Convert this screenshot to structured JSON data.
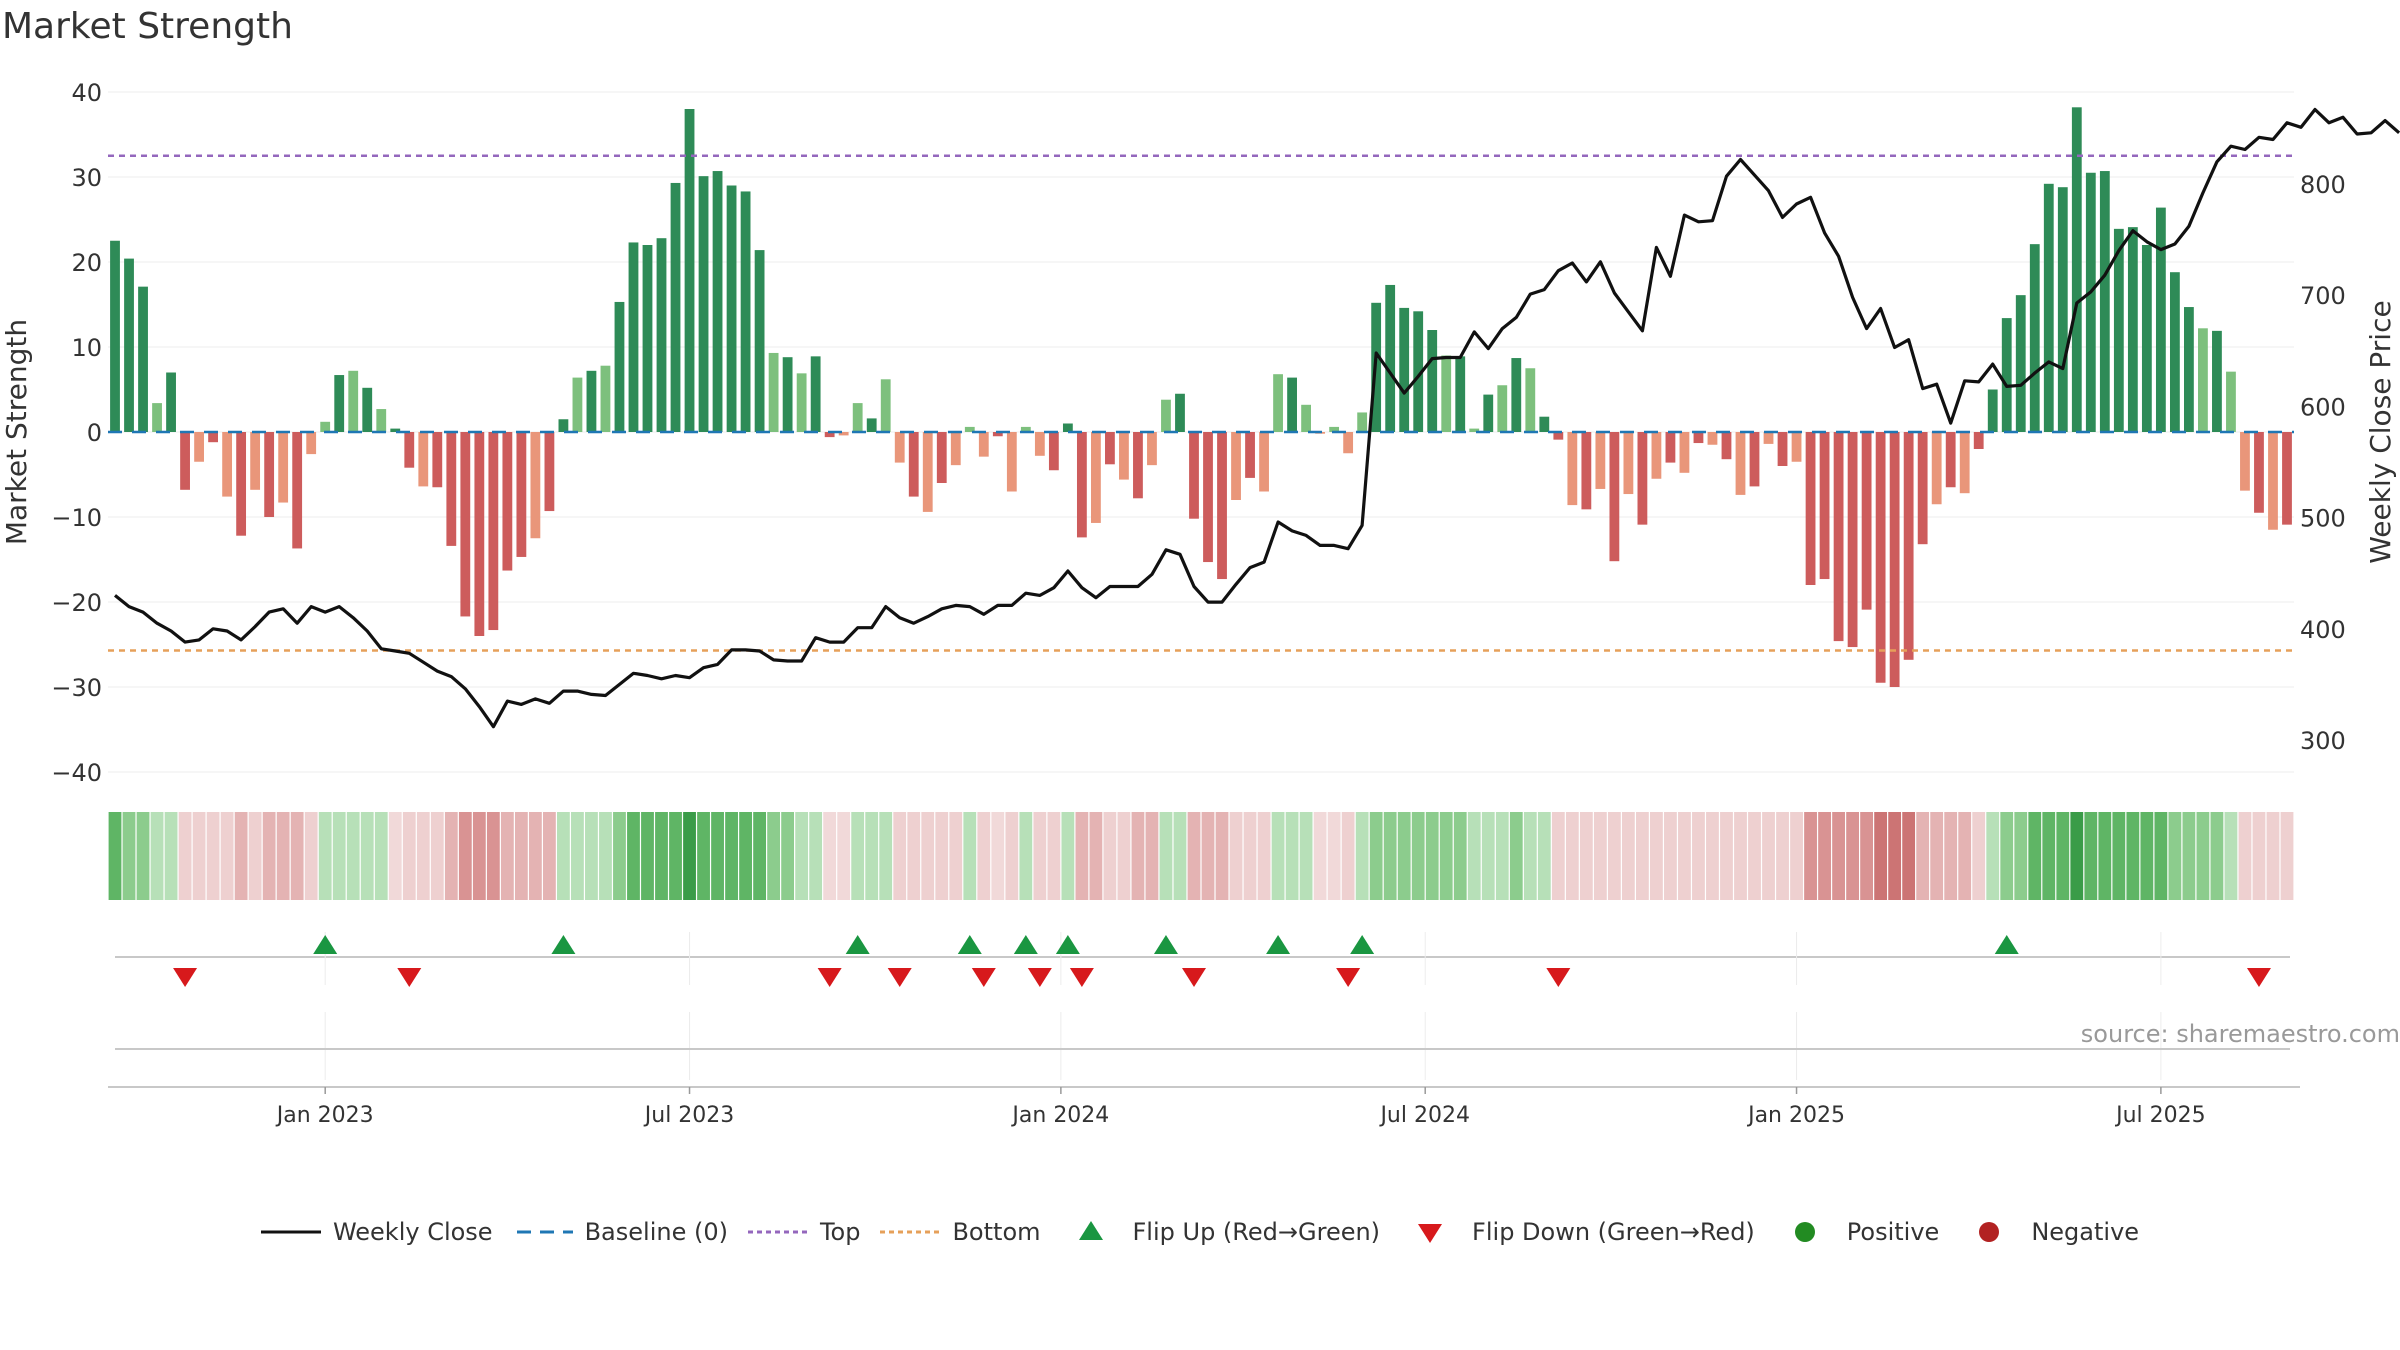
{
  "title": "Market Strength",
  "source": "source: sharemaestro.com",
  "colors": {
    "pos_strong": "#2e8b57",
    "pos_light": "#7dc07d",
    "neg_strong": "#cd5c5c",
    "neg_light": "#e9967a",
    "price_line": "#111111",
    "baseline": "#1f77b4",
    "top": "#9467bd",
    "bottom": "#e6a05a",
    "flip_up": "#1a9641",
    "flip_down": "#d7191c",
    "positive": "#228b22",
    "negative": "#b22222"
  },
  "legend": [
    {
      "label": "Weekly Close",
      "kind": "line-solid",
      "color": "#111111"
    },
    {
      "label": "Baseline (0)",
      "kind": "line-dash",
      "color": "#1f77b4"
    },
    {
      "label": "Top",
      "kind": "line-dot",
      "color": "#9467bd"
    },
    {
      "label": "Bottom",
      "kind": "line-dot",
      "color": "#e6a05a"
    },
    {
      "label": "Flip Up (Red→Green)",
      "kind": "tri-up",
      "color": "#1a9641"
    },
    {
      "label": "Flip Down (Green→Red)",
      "kind": "tri-down",
      "color": "#d7191c"
    },
    {
      "label": "Positive",
      "kind": "dot",
      "color": "#228b22"
    },
    {
      "label": "Negative",
      "kind": "dot",
      "color": "#b22222"
    }
  ],
  "chart_data": {
    "type": "bar",
    "ylabel": "Market Strength",
    "y2label": "Weekly Close Price",
    "ylim": [
      -40,
      40
    ],
    "y2lim": [
      260,
      880
    ],
    "yticks": [
      40,
      30,
      20,
      10,
      0,
      -10,
      -20,
      -30,
      -40
    ],
    "y2ticks": [
      800,
      700,
      600,
      500,
      400,
      300
    ],
    "xticks": [
      "Jan 2023",
      "Jul 2023",
      "Jan 2024",
      "Jul 2024",
      "Jan 2025",
      "Jul 2025"
    ],
    "xtick_index": [
      15,
      41,
      67.5,
      93.5,
      120,
      146
    ],
    "top_level": 32.5,
    "bottom_level": -25.7,
    "baseline": 0,
    "strength": [
      22.5,
      20.4,
      17.1,
      3.4,
      7,
      -6.8,
      -3.5,
      -1.2,
      -7.6,
      -12.2,
      -6.8,
      -10,
      -8.3,
      -13.7,
      -2.6,
      1.2,
      6.7,
      7.2,
      5.2,
      2.7,
      0.4,
      -4.2,
      -6.4,
      -6.5,
      -13.4,
      -21.7,
      -24,
      -23.3,
      -16.3,
      -14.7,
      -12.5,
      -9.3,
      1.5,
      6.4,
      7.2,
      7.8,
      15.3,
      22.3,
      22,
      22.8,
      29.3,
      38,
      30.1,
      30.7,
      29,
      28.3,
      21.4,
      9.3,
      8.8,
      6.9,
      8.9,
      -0.6,
      -0.4,
      3.4,
      1.6,
      6.2,
      -3.6,
      -7.6,
      -9.4,
      -6,
      -3.9,
      0.6,
      -2.9,
      -0.5,
      -7,
      0.6,
      -2.8,
      -4.5,
      1,
      -12.4,
      -10.7,
      -3.8,
      -5.6,
      -7.8,
      -3.9,
      3.8,
      4.5,
      -10.2,
      -15.3,
      -17.3,
      -8,
      -5.4,
      -7,
      6.8,
      6.4,
      3.2,
      -0.2,
      0.6,
      -2.5,
      2.3,
      15.2,
      17.3,
      14.6,
      14.2,
      12,
      9,
      8.9,
      0.4,
      4.4,
      5.5,
      8.7,
      7.5,
      1.8,
      -0.9,
      -8.6,
      -9.1,
      -6.7,
      -15.2,
      -7.3,
      -10.9,
      -5.5,
      -3.6,
      -4.8,
      -1.3,
      -1.5,
      -3.2,
      -7.4,
      -6.4,
      -1.4,
      -4,
      -3.5,
      -18,
      -17.3,
      -24.6,
      -25.3,
      -20.9,
      -29.5,
      -30,
      -26.8,
      -13.2,
      -8.5,
      -6.5,
      -7.2,
      -2,
      5,
      13.4,
      16.1,
      22.1,
      29.2,
      28.8,
      38.2,
      30.5,
      30.7,
      23.9,
      24.1,
      22,
      26.4,
      18.8,
      14.7,
      12.2,
      11.9,
      7.1,
      -6.9,
      -9.5,
      -11.5,
      -10.9
    ],
    "close": [
      430,
      420,
      415,
      405,
      398,
      388,
      390,
      400,
      398,
      390,
      402,
      415,
      418,
      405,
      420,
      415,
      420,
      410,
      398,
      382,
      380,
      378,
      370,
      362,
      357,
      346,
      330,
      312,
      335,
      332,
      337,
      333,
      344,
      344,
      341,
      340,
      350,
      360,
      358,
      355,
      358,
      356,
      365,
      368,
      381,
      381,
      380,
      372,
      371,
      371,
      392,
      388,
      388,
      401,
      401,
      420,
      410,
      405,
      411,
      418,
      421,
      420,
      413,
      421,
      421,
      432,
      430,
      437,
      452,
      437,
      428,
      438,
      438,
      438,
      449,
      471,
      467,
      438,
      424,
      424,
      440,
      455,
      460,
      496,
      488,
      484,
      475,
      475,
      472,
      493,
      648,
      630,
      612,
      627,
      643,
      644,
      644,
      667,
      652,
      670,
      680,
      701,
      705,
      722,
      729,
      712,
      730,
      702,
      685,
      668,
      743,
      717,
      772,
      766,
      767,
      807,
      822,
      808,
      794,
      770,
      782,
      788,
      756,
      735,
      698,
      670,
      688,
      653,
      660,
      616,
      620,
      585,
      623,
      622,
      638,
      618,
      619,
      630,
      640,
      634,
      693,
      703,
      718,
      740,
      758,
      748,
      741,
      746,
      762,
      792,
      820,
      834,
      831,
      842,
      840,
      855,
      851,
      867,
      855,
      860,
      845,
      846,
      857,
      846
    ],
    "flip_up": [
      15,
      32,
      53,
      61,
      65,
      68,
      75,
      83,
      89,
      135
    ],
    "flip_down": [
      5,
      21,
      51,
      56,
      62,
      66,
      69,
      77,
      88,
      103,
      153
    ],
    "heat_levels": [
      3,
      2,
      2,
      1,
      1,
      -1,
      -1,
      -1,
      -1,
      -2,
      -1,
      -2,
      -2,
      -2,
      -1,
      1,
      1,
      1,
      1,
      1,
      0,
      -1,
      -1,
      -1,
      -2,
      -3,
      -3,
      -3,
      -2,
      -2,
      -2,
      -2,
      1,
      1,
      1,
      1,
      2,
      3,
      3,
      3,
      3,
      4,
      3,
      3,
      3,
      3,
      3,
      2,
      2,
      1,
      1,
      0,
      0,
      1,
      1,
      1,
      -1,
      -1,
      -1,
      -1,
      -1,
      1,
      -1,
      0,
      -1,
      1,
      -1,
      -1,
      1,
      -2,
      -2,
      -1,
      -1,
      -2,
      -2,
      1,
      1,
      -2,
      -2,
      -2,
      -1,
      -1,
      -1,
      1,
      1,
      1,
      0,
      0,
      -1,
      1,
      2,
      2,
      2,
      2,
      2,
      2,
      2,
      1,
      1,
      1,
      2,
      1,
      1,
      -1,
      -1,
      -1,
      -1,
      -1,
      -1,
      -1,
      -1,
      -1,
      -1,
      -1,
      -1,
      -1,
      -1,
      -1,
      -1,
      -1,
      -1,
      -3,
      -3,
      -3,
      -3,
      -3,
      -4,
      -4,
      -4,
      -2,
      -2,
      -2,
      -2,
      -1,
      1,
      2,
      2,
      3,
      3,
      3,
      4,
      3,
      3,
      3,
      3,
      3,
      3,
      2,
      2,
      2,
      2,
      1,
      -1,
      -1,
      -1,
      -1
    ]
  }
}
